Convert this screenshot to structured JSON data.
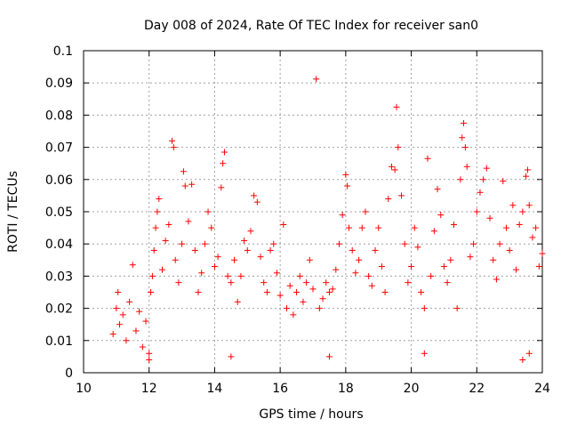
{
  "chart_data": {
    "type": "scatter",
    "title": "Day 008 of 2024, Rate Of TEC Index for receiver san0",
    "xlabel": "GPS time / hours",
    "ylabel": "ROTI / TECUs",
    "xlim": [
      10,
      24
    ],
    "ylim": [
      0,
      0.1
    ],
    "x_ticks": [
      10,
      12,
      14,
      16,
      18,
      20,
      22,
      24
    ],
    "x_tick_labels": [
      "10",
      "12",
      "14",
      "16",
      "18",
      "20",
      "22",
      "24"
    ],
    "y_ticks": [
      0,
      0.01,
      0.02,
      0.03,
      0.04,
      0.05,
      0.06,
      0.07,
      0.08,
      0.09,
      0.1
    ],
    "y_tick_labels": [
      "0",
      "0.01",
      "0.02",
      "0.03",
      "0.04",
      "0.05",
      "0.06",
      "0.07",
      "0.08",
      "0.09",
      "0.1"
    ],
    "grid": true,
    "marker": "+",
    "color": "#ff0000",
    "series": [
      {
        "name": "san0",
        "points": [
          [
            10.9,
            0.012
          ],
          [
            11.0,
            0.02
          ],
          [
            11.05,
            0.025
          ],
          [
            11.1,
            0.015
          ],
          [
            11.2,
            0.018
          ],
          [
            11.3,
            0.01
          ],
          [
            11.4,
            0.022
          ],
          [
            11.5,
            0.0335
          ],
          [
            11.6,
            0.013
          ],
          [
            11.7,
            0.019
          ],
          [
            11.8,
            0.008
          ],
          [
            11.9,
            0.016
          ],
          [
            12.0,
            0.006
          ],
          [
            12.05,
            0.025
          ],
          [
            12.1,
            0.03
          ],
          [
            12.15,
            0.038
          ],
          [
            12.2,
            0.045
          ],
          [
            12.25,
            0.05
          ],
          [
            12.3,
            0.054
          ],
          [
            12.4,
            0.032
          ],
          [
            12.5,
            0.041
          ],
          [
            12.6,
            0.046
          ],
          [
            12.7,
            0.072
          ],
          [
            12.75,
            0.07
          ],
          [
            12.8,
            0.035
          ],
          [
            12.9,
            0.028
          ],
          [
            13.0,
            0.04
          ],
          [
            13.05,
            0.0625
          ],
          [
            13.1,
            0.058
          ],
          [
            13.2,
            0.047
          ],
          [
            13.3,
            0.0585
          ],
          [
            13.4,
            0.038
          ],
          [
            13.5,
            0.025
          ],
          [
            13.6,
            0.031
          ],
          [
            13.7,
            0.04
          ],
          [
            13.8,
            0.05
          ],
          [
            13.9,
            0.045
          ],
          [
            14.0,
            0.033
          ],
          [
            14.1,
            0.036
          ],
          [
            14.2,
            0.0575
          ],
          [
            14.25,
            0.065
          ],
          [
            14.3,
            0.0685
          ],
          [
            14.4,
            0.03
          ],
          [
            14.5,
            0.028
          ],
          [
            14.6,
            0.035
          ],
          [
            14.7,
            0.022
          ],
          [
            14.8,
            0.03
          ],
          [
            14.9,
            0.041
          ],
          [
            15.0,
            0.038
          ],
          [
            15.1,
            0.044
          ],
          [
            15.2,
            0.055
          ],
          [
            15.3,
            0.053
          ],
          [
            15.4,
            0.036
          ],
          [
            15.5,
            0.028
          ],
          [
            15.6,
            0.025
          ],
          [
            15.7,
            0.038
          ],
          [
            15.8,
            0.04
          ],
          [
            15.9,
            0.031
          ],
          [
            16.0,
            0.024
          ],
          [
            16.1,
            0.046
          ],
          [
            16.2,
            0.02
          ],
          [
            16.3,
            0.027
          ],
          [
            16.4,
            0.018
          ],
          [
            16.5,
            0.025
          ],
          [
            16.6,
            0.03
          ],
          [
            16.7,
            0.022
          ],
          [
            16.8,
            0.028
          ],
          [
            16.9,
            0.035
          ],
          [
            17.0,
            0.026
          ],
          [
            17.1,
            0.0912
          ],
          [
            17.2,
            0.02
          ],
          [
            17.3,
            0.023
          ],
          [
            17.4,
            0.028
          ],
          [
            17.5,
            0.025
          ],
          [
            17.6,
            0.026
          ],
          [
            17.7,
            0.032
          ],
          [
            17.8,
            0.04
          ],
          [
            17.9,
            0.049
          ],
          [
            18.0,
            0.0615
          ],
          [
            18.05,
            0.058
          ],
          [
            18.1,
            0.045
          ],
          [
            18.2,
            0.038
          ],
          [
            18.3,
            0.031
          ],
          [
            18.4,
            0.035
          ],
          [
            18.5,
            0.045
          ],
          [
            18.6,
            0.05
          ],
          [
            18.7,
            0.03
          ],
          [
            18.8,
            0.027
          ],
          [
            18.9,
            0.038
          ],
          [
            19.0,
            0.045
          ],
          [
            19.1,
            0.033
          ],
          [
            19.2,
            0.025
          ],
          [
            19.3,
            0.054
          ],
          [
            19.4,
            0.064
          ],
          [
            19.5,
            0.063
          ],
          [
            19.55,
            0.0825
          ],
          [
            19.6,
            0.07
          ],
          [
            19.7,
            0.055
          ],
          [
            19.8,
            0.04
          ],
          [
            19.9,
            0.028
          ],
          [
            20.0,
            0.033
          ],
          [
            20.1,
            0.045
          ],
          [
            20.2,
            0.039
          ],
          [
            20.3,
            0.025
          ],
          [
            20.4,
            0.02
          ],
          [
            20.5,
            0.0665
          ],
          [
            20.6,
            0.03
          ],
          [
            20.7,
            0.044
          ],
          [
            20.8,
            0.057
          ],
          [
            20.9,
            0.049
          ],
          [
            21.0,
            0.033
          ],
          [
            21.1,
            0.028
          ],
          [
            21.2,
            0.035
          ],
          [
            21.3,
            0.046
          ],
          [
            21.4,
            0.02
          ],
          [
            21.5,
            0.06
          ],
          [
            21.55,
            0.073
          ],
          [
            21.6,
            0.0775
          ],
          [
            21.65,
            0.07
          ],
          [
            21.7,
            0.064
          ],
          [
            21.8,
            0.036
          ],
          [
            21.9,
            0.04
          ],
          [
            22.0,
            0.05
          ],
          [
            22.1,
            0.056
          ],
          [
            22.2,
            0.06
          ],
          [
            22.3,
            0.0635
          ],
          [
            22.4,
            0.048
          ],
          [
            22.5,
            0.035
          ],
          [
            22.6,
            0.029
          ],
          [
            22.7,
            0.04
          ],
          [
            22.8,
            0.0595
          ],
          [
            22.9,
            0.045
          ],
          [
            23.0,
            0.038
          ],
          [
            23.1,
            0.052
          ],
          [
            23.2,
            0.032
          ],
          [
            23.3,
            0.046
          ],
          [
            23.4,
            0.05
          ],
          [
            23.5,
            0.061
          ],
          [
            23.55,
            0.063
          ],
          [
            23.6,
            0.052
          ],
          [
            23.7,
            0.042
          ],
          [
            23.8,
            0.045
          ],
          [
            23.9,
            0.033
          ],
          [
            24.0,
            0.037
          ],
          [
            23.4,
            0.004
          ],
          [
            23.6,
            0.006
          ],
          [
            20.4,
            0.006
          ],
          [
            17.5,
            0.005
          ],
          [
            12.0,
            0.004
          ],
          [
            14.5,
            0.005
          ]
        ]
      }
    ]
  }
}
